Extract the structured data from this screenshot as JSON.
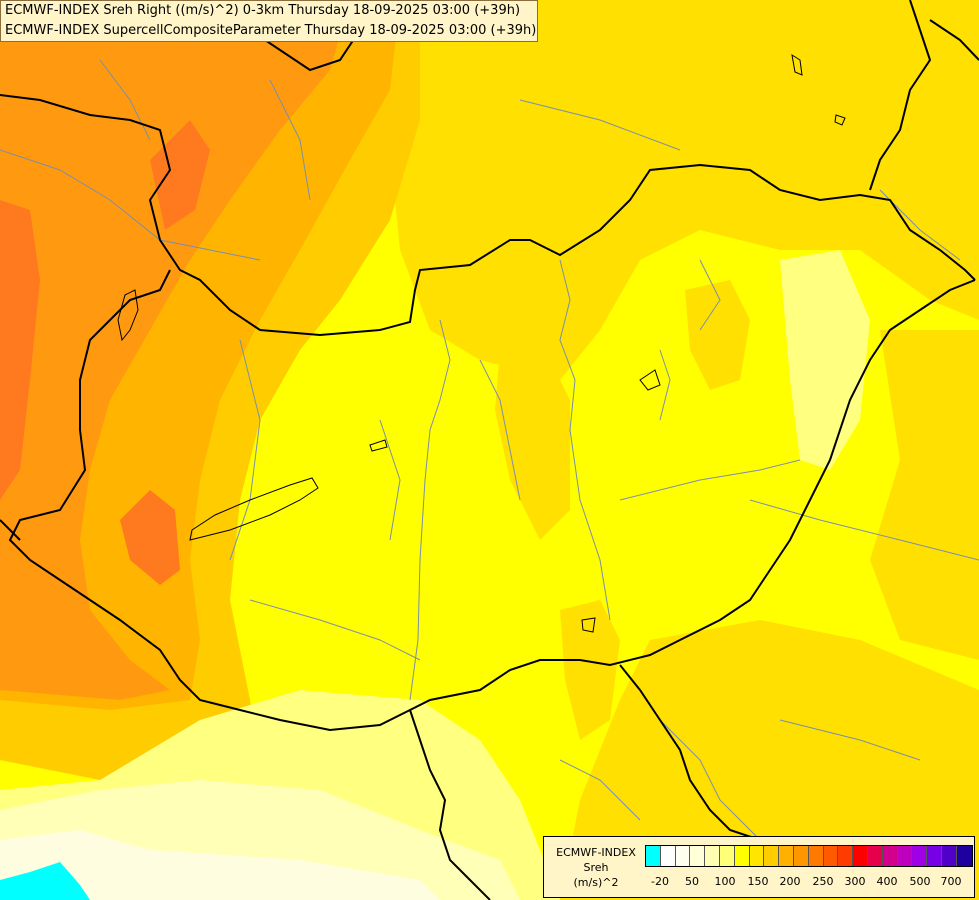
{
  "titles": [
    "ECMWF-INDEX Sreh Right ((m/s)^2) 0-3km Thursday 18-09-2025 03:00 (+39h)",
    "ECMWF-INDEX SupercellCompositeParameter Thursday 18-09-2025 03:00 (+39h)"
  ],
  "legend": {
    "line1": "ECMWF-INDEX",
    "line2": "Sreh",
    "line3": "(m/s)^2",
    "swatch_colors": [
      "#00ffff",
      "#ffffff",
      "#fffff0",
      "#ffffd8",
      "#ffffb4",
      "#ffff78",
      "#ffff00",
      "#ffe600",
      "#ffcc00",
      "#ffb000",
      "#ff9600",
      "#ff7800",
      "#ff5a00",
      "#ff3c00",
      "#ff0000",
      "#e6004b",
      "#d2008c",
      "#be00be",
      "#a000e6",
      "#7800e6",
      "#5000c8",
      "#1e00a0"
    ],
    "ticks": [
      "-20",
      "50",
      "100",
      "150",
      "200",
      "250",
      "300",
      "400",
      "500",
      "700"
    ]
  },
  "colors": {
    "orange_dark": "#ff7a1e",
    "orange": "#ff9a10",
    "orange_light": "#ffb400",
    "amber": "#ffcc00",
    "gold": "#ffe000",
    "yellow": "#ffff00",
    "pale": "#ffff80",
    "paler": "#ffffb8",
    "cream": "#fffde0",
    "cyan": "#00ffff"
  }
}
